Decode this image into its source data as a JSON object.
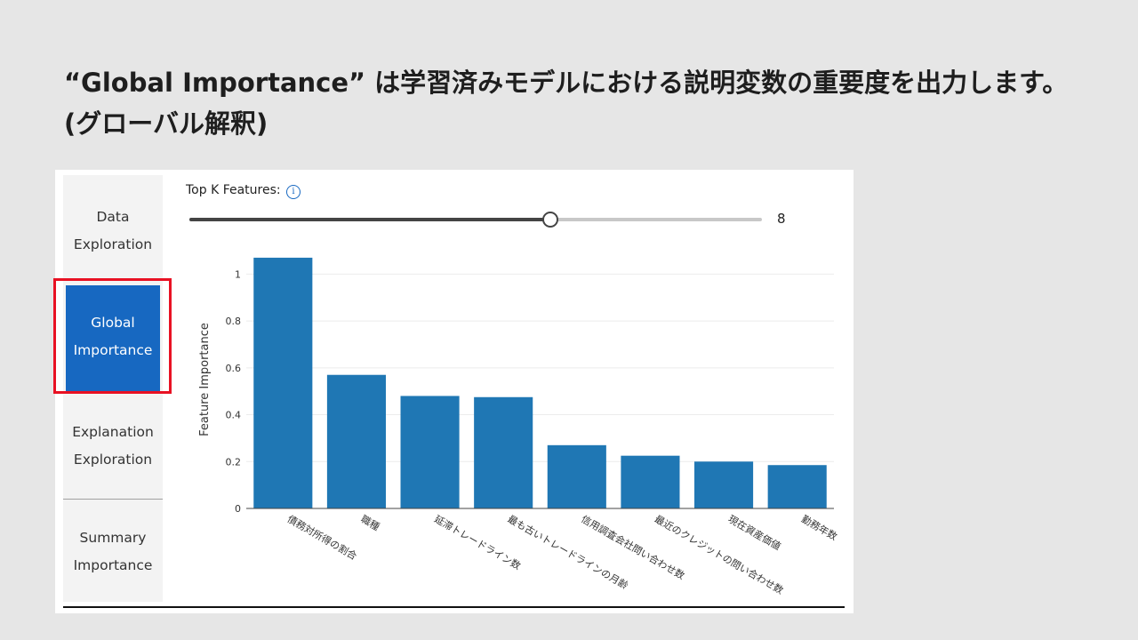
{
  "slide": {
    "title_line1": "“Global Importance” は学習済みモデルにおける説明変数の重要度を出力します。",
    "title_line2": "(グローバル解釈)"
  },
  "nav": {
    "items": [
      {
        "line1": "Data",
        "line2": "Exploration",
        "active": false
      },
      {
        "line1": "Global",
        "line2": "Importance",
        "active": true
      },
      {
        "line1": "Explanation",
        "line2": "Exploration",
        "active": false
      },
      {
        "line1": "Summary",
        "line2": "Importance",
        "active": false
      }
    ]
  },
  "controls": {
    "topk_label": "Top K Features:",
    "info_glyph": "i",
    "slider_value": "8",
    "slider_fraction": 0.63
  },
  "colors": {
    "bar": "#1f77b4",
    "nav_active": "#1768c1",
    "highlight": "#e81123"
  },
  "chart_data": {
    "type": "bar",
    "title": "",
    "xlabel": "",
    "ylabel": "Feature Importance",
    "ylim": [
      0,
      1.1
    ],
    "yticks": [
      0,
      0.2,
      0.4,
      0.6,
      0.8,
      1
    ],
    "ytick_labels": [
      "0",
      "0.2",
      "0.4",
      "0.6",
      "0.8",
      "1"
    ],
    "grid": true,
    "categories": [
      "債務対所得の割合",
      "職種",
      "延滞トレードライン数",
      "最も古いトレードラインの月齢",
      "信用調査会社問い合わせ数",
      "最近のクレジットの問い合わせ数",
      "現在資産価値",
      "勤務年数"
    ],
    "values": [
      1.07,
      0.57,
      0.48,
      0.475,
      0.27,
      0.225,
      0.2,
      0.185
    ]
  }
}
